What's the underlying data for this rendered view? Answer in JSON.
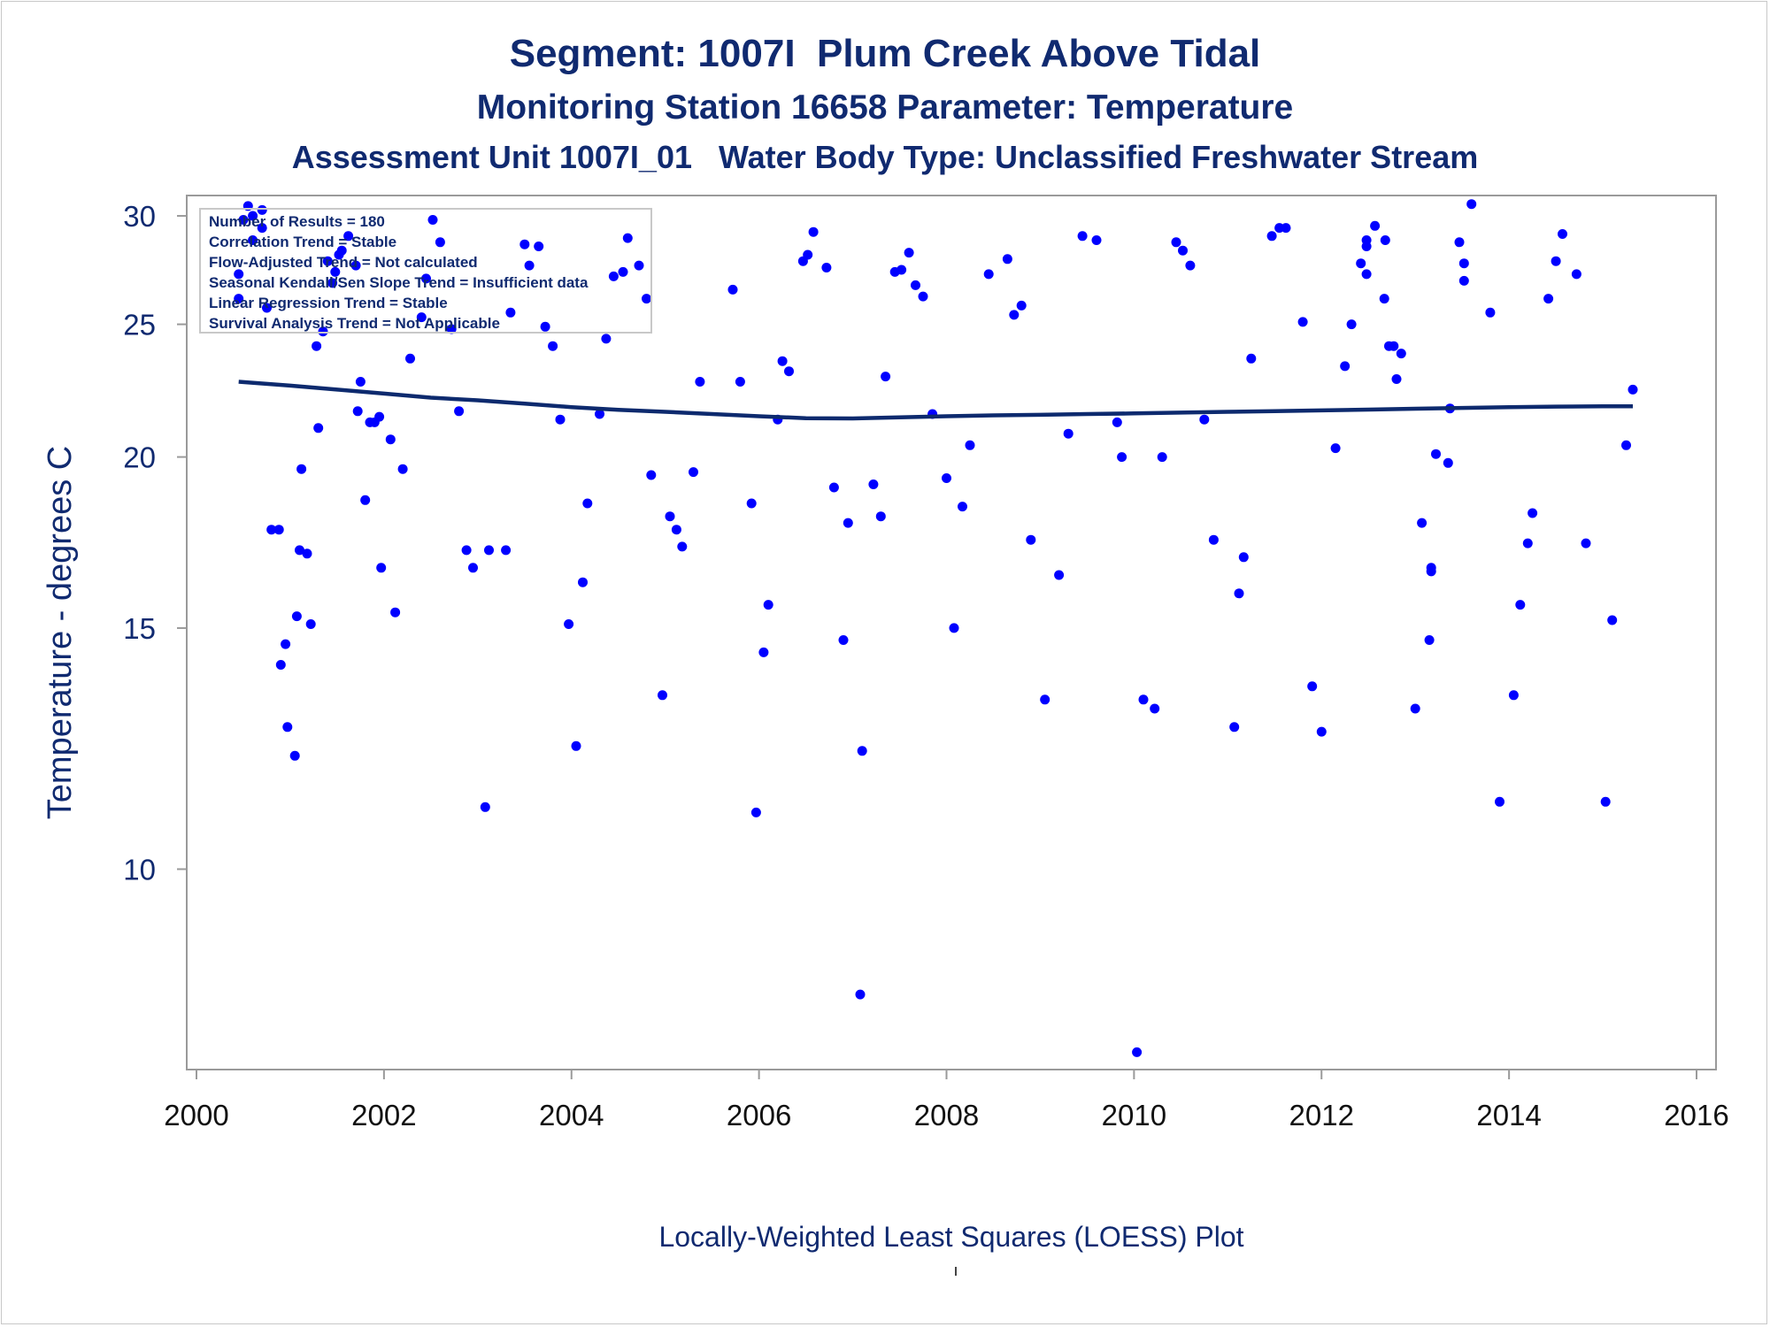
{
  "titles": {
    "line1": "Segment: 1007I  Plum Creek Above Tidal",
    "line2": "Monitoring Station 16658 Parameter: Temperature",
    "line3": "Assessment Unit 1007I_01   Water Body Type: Unclassified Freshwater Stream"
  },
  "stats_box": [
    "Number of Results = 180",
    "Correlation Trend = Stable",
    "Flow-Adjusted Trend = Not calculated",
    "Seasonal Kendall/Sen Slope Trend = Insufficient data",
    "Linear Regression Trend = Stable",
    "Survival Analysis Trend = Not Applicable"
  ],
  "footnote": "Locally-Weighted Least Squares (LOESS) Plot",
  "colors": {
    "points": "#0000ff",
    "loess": "#0d2a6e",
    "text": "#102a70",
    "axis": "#9a9a9a"
  },
  "chart_data": {
    "type": "scatter",
    "ylabel": "Temperature - degrees C",
    "xlabel": "",
    "x_ticks": [
      "2000",
      "2002",
      "2004",
      "2006",
      "2008",
      "2010",
      "2012",
      "2014",
      "2016"
    ],
    "y_ticks": [
      "10",
      "15",
      "20",
      "25",
      "30"
    ],
    "xlim": [
      2000,
      2016
    ],
    "ylim_log": [
      7.3,
      31
    ],
    "yscale": "log",
    "grid": false,
    "points": [
      [
        2000.45,
        26.1
      ],
      [
        2000.45,
        27.2
      ],
      [
        2000.5,
        29.8
      ],
      [
        2000.55,
        30.5
      ],
      [
        2000.6,
        30.0
      ],
      [
        2000.6,
        28.8
      ],
      [
        2000.7,
        30.3
      ],
      [
        2000.7,
        29.4
      ],
      [
        2000.75,
        25.7
      ],
      [
        2000.8,
        17.7
      ],
      [
        2000.88,
        17.7
      ],
      [
        2000.9,
        14.1
      ],
      [
        2000.95,
        14.6
      ],
      [
        2000.97,
        12.7
      ],
      [
        2001.05,
        12.1
      ],
      [
        2001.07,
        15.3
      ],
      [
        2001.1,
        17.1
      ],
      [
        2001.12,
        19.6
      ],
      [
        2001.18,
        17.0
      ],
      [
        2001.22,
        15.1
      ],
      [
        2001.28,
        24.1
      ],
      [
        2001.3,
        21.0
      ],
      [
        2001.35,
        24.7
      ],
      [
        2001.4,
        27.8
      ],
      [
        2001.45,
        26.8
      ],
      [
        2001.48,
        27.3
      ],
      [
        2001.52,
        28.1
      ],
      [
        2001.55,
        28.3
      ],
      [
        2001.62,
        29.0
      ],
      [
        2001.7,
        27.6
      ],
      [
        2001.72,
        21.6
      ],
      [
        2001.75,
        22.7
      ],
      [
        2001.8,
        18.6
      ],
      [
        2001.85,
        21.2
      ],
      [
        2001.9,
        21.2
      ],
      [
        2001.95,
        21.4
      ],
      [
        2001.97,
        16.6
      ],
      [
        2002.07,
        20.6
      ],
      [
        2002.12,
        15.4
      ],
      [
        2002.2,
        19.6
      ],
      [
        2002.28,
        23.6
      ],
      [
        2002.4,
        25.3
      ],
      [
        2002.45,
        27.0
      ],
      [
        2002.52,
        29.8
      ],
      [
        2002.6,
        28.7
      ],
      [
        2002.72,
        24.8
      ],
      [
        2002.8,
        21.6
      ],
      [
        2002.88,
        17.1
      ],
      [
        2002.95,
        16.6
      ],
      [
        2003.08,
        11.1
      ],
      [
        2003.12,
        17.1
      ],
      [
        2003.3,
        17.1
      ],
      [
        2003.35,
        25.5
      ],
      [
        2003.5,
        28.6
      ],
      [
        2003.55,
        27.6
      ],
      [
        2003.65,
        28.5
      ],
      [
        2003.72,
        24.9
      ],
      [
        2003.8,
        24.1
      ],
      [
        2003.88,
        21.3
      ],
      [
        2003.97,
        15.1
      ],
      [
        2004.05,
        12.3
      ],
      [
        2004.12,
        16.2
      ],
      [
        2004.17,
        18.5
      ],
      [
        2004.3,
        21.5
      ],
      [
        2004.37,
        24.4
      ],
      [
        2004.45,
        27.1
      ],
      [
        2004.55,
        27.3
      ],
      [
        2004.6,
        28.9
      ],
      [
        2004.72,
        27.6
      ],
      [
        2004.8,
        26.1
      ],
      [
        2004.85,
        19.4
      ],
      [
        2004.97,
        13.4
      ],
      [
        2005.05,
        18.1
      ],
      [
        2005.12,
        17.7
      ],
      [
        2005.18,
        17.2
      ],
      [
        2005.3,
        19.5
      ],
      [
        2005.37,
        22.7
      ],
      [
        2005.72,
        26.5
      ],
      [
        2005.8,
        22.7
      ],
      [
        2005.92,
        18.5
      ],
      [
        2005.97,
        11.0
      ],
      [
        2006.05,
        14.4
      ],
      [
        2006.1,
        15.6
      ],
      [
        2006.2,
        21.3
      ],
      [
        2006.25,
        23.5
      ],
      [
        2006.32,
        23.1
      ],
      [
        2006.47,
        27.8
      ],
      [
        2006.52,
        28.1
      ],
      [
        2006.58,
        29.2
      ],
      [
        2006.72,
        27.5
      ],
      [
        2006.8,
        19.0
      ],
      [
        2006.9,
        14.7
      ],
      [
        2006.95,
        17.9
      ],
      [
        2007.08,
        8.1
      ],
      [
        2007.1,
        12.2
      ],
      [
        2007.22,
        19.1
      ],
      [
        2007.3,
        18.1
      ],
      [
        2007.35,
        22.9
      ],
      [
        2007.45,
        27.3
      ],
      [
        2007.52,
        27.4
      ],
      [
        2007.6,
        28.2
      ],
      [
        2007.67,
        26.7
      ],
      [
        2007.75,
        26.2
      ],
      [
        2007.85,
        21.5
      ],
      [
        2008.0,
        19.3
      ],
      [
        2008.08,
        15.0
      ],
      [
        2008.17,
        18.4
      ],
      [
        2008.25,
        20.4
      ],
      [
        2008.45,
        27.2
      ],
      [
        2008.65,
        27.9
      ],
      [
        2008.72,
        25.4
      ],
      [
        2008.8,
        25.8
      ],
      [
        2008.9,
        17.4
      ],
      [
        2009.05,
        13.3
      ],
      [
        2009.2,
        16.4
      ],
      [
        2009.3,
        20.8
      ],
      [
        2009.45,
        29.0
      ],
      [
        2009.6,
        28.8
      ],
      [
        2009.82,
        21.2
      ],
      [
        2009.87,
        20.0
      ],
      [
        2010.03,
        7.35
      ],
      [
        2010.1,
        13.3
      ],
      [
        2010.22,
        13.1
      ],
      [
        2010.3,
        20.0
      ],
      [
        2010.45,
        28.7
      ],
      [
        2010.52,
        28.3
      ],
      [
        2010.6,
        27.6
      ],
      [
        2010.75,
        21.3
      ],
      [
        2010.85,
        17.4
      ],
      [
        2011.07,
        12.7
      ],
      [
        2011.12,
        15.9
      ],
      [
        2011.17,
        16.9
      ],
      [
        2011.25,
        23.6
      ],
      [
        2011.47,
        29.0
      ],
      [
        2011.55,
        29.4
      ],
      [
        2011.62,
        29.4
      ],
      [
        2011.8,
        25.1
      ],
      [
        2011.9,
        13.6
      ],
      [
        2012.0,
        12.6
      ],
      [
        2012.15,
        20.3
      ],
      [
        2012.25,
        23.3
      ],
      [
        2012.32,
        25.0
      ],
      [
        2012.42,
        27.7
      ],
      [
        2012.48,
        28.5
      ],
      [
        2012.48,
        27.2
      ],
      [
        2012.48,
        28.8
      ],
      [
        2012.57,
        29.5
      ],
      [
        2012.67,
        26.1
      ],
      [
        2012.68,
        28.8
      ],
      [
        2012.72,
        24.1
      ],
      [
        2012.77,
        24.1
      ],
      [
        2012.8,
        22.8
      ],
      [
        2012.85,
        23.8
      ],
      [
        2013.0,
        13.1
      ],
      [
        2013.07,
        17.9
      ],
      [
        2013.15,
        14.7
      ],
      [
        2013.17,
        16.5
      ],
      [
        2013.17,
        16.6
      ],
      [
        2013.22,
        20.1
      ],
      [
        2013.35,
        19.8
      ],
      [
        2013.37,
        21.7
      ],
      [
        2013.47,
        28.7
      ],
      [
        2013.52,
        27.7
      ],
      [
        2013.52,
        26.9
      ],
      [
        2013.6,
        30.6
      ],
      [
        2013.8,
        25.5
      ],
      [
        2013.9,
        11.2
      ],
      [
        2014.05,
        13.4
      ],
      [
        2014.12,
        15.6
      ],
      [
        2014.2,
        17.3
      ],
      [
        2014.25,
        18.2
      ],
      [
        2014.42,
        26.1
      ],
      [
        2014.5,
        27.8
      ],
      [
        2014.57,
        29.1
      ],
      [
        2014.72,
        27.2
      ],
      [
        2014.82,
        17.3
      ],
      [
        2015.03,
        11.2
      ],
      [
        2015.1,
        15.2
      ],
      [
        2015.25,
        20.4
      ],
      [
        2015.32,
        22.4
      ]
    ],
    "loess": [
      [
        2000.45,
        22.7
      ],
      [
        2001.0,
        22.55
      ],
      [
        2001.5,
        22.4
      ],
      [
        2002.0,
        22.25
      ],
      [
        2002.5,
        22.1
      ],
      [
        2003.0,
        22.0
      ],
      [
        2003.5,
        21.88
      ],
      [
        2004.0,
        21.75
      ],
      [
        2004.5,
        21.65
      ],
      [
        2005.0,
        21.58
      ],
      [
        2005.5,
        21.5
      ],
      [
        2006.0,
        21.42
      ],
      [
        2006.5,
        21.35
      ],
      [
        2007.0,
        21.34
      ],
      [
        2007.5,
        21.38
      ],
      [
        2008.0,
        21.42
      ],
      [
        2008.5,
        21.45
      ],
      [
        2009.0,
        21.47
      ],
      [
        2009.5,
        21.5
      ],
      [
        2010.0,
        21.52
      ],
      [
        2010.5,
        21.55
      ],
      [
        2011.0,
        21.58
      ],
      [
        2011.5,
        21.6
      ],
      [
        2012.0,
        21.63
      ],
      [
        2012.5,
        21.66
      ],
      [
        2013.0,
        21.69
      ],
      [
        2013.5,
        21.72
      ],
      [
        2014.0,
        21.75
      ],
      [
        2014.5,
        21.77
      ],
      [
        2015.0,
        21.78
      ],
      [
        2015.32,
        21.78
      ]
    ]
  }
}
